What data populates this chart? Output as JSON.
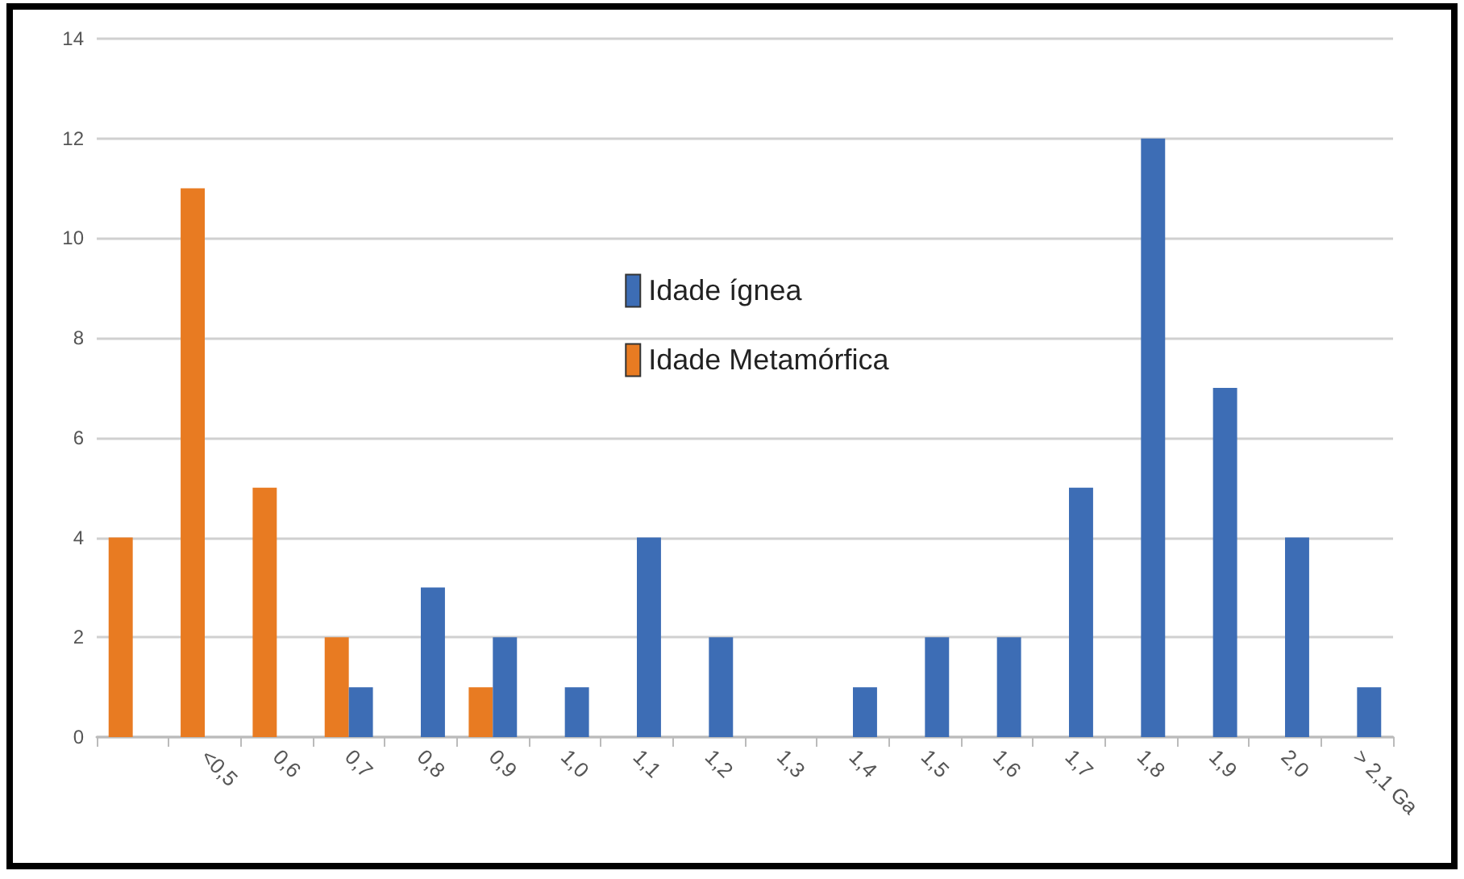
{
  "chart_data": {
    "type": "bar",
    "categories": [
      null,
      "<0,5",
      "0,6",
      "0,7",
      "0,8",
      "0,9",
      "1,0",
      "1,1",
      "1,2",
      "1,3",
      "1,4",
      "1,5",
      "1,6",
      "1,7",
      "1,8",
      "1,9",
      "2,0",
      "> 2,1 Ga"
    ],
    "series": [
      {
        "name": "Idade Metamórfica",
        "color": "#e87b22",
        "values": [
          4,
          11,
          5,
          2,
          0,
          1,
          0,
          0,
          0,
          0,
          0,
          0,
          0,
          0,
          0,
          0,
          0,
          0
        ]
      },
      {
        "name": "Idade ígnea",
        "color": "#3d6db5",
        "values": [
          0,
          0,
          0,
          1,
          3,
          2,
          1,
          4,
          2,
          0,
          1,
          2,
          2,
          5,
          12,
          7,
          4,
          1
        ]
      }
    ],
    "ylim": [
      0,
      14
    ],
    "yticks": [
      0,
      2,
      4,
      6,
      8,
      10,
      12,
      14
    ],
    "grid": "y",
    "legend": "top"
  }
}
